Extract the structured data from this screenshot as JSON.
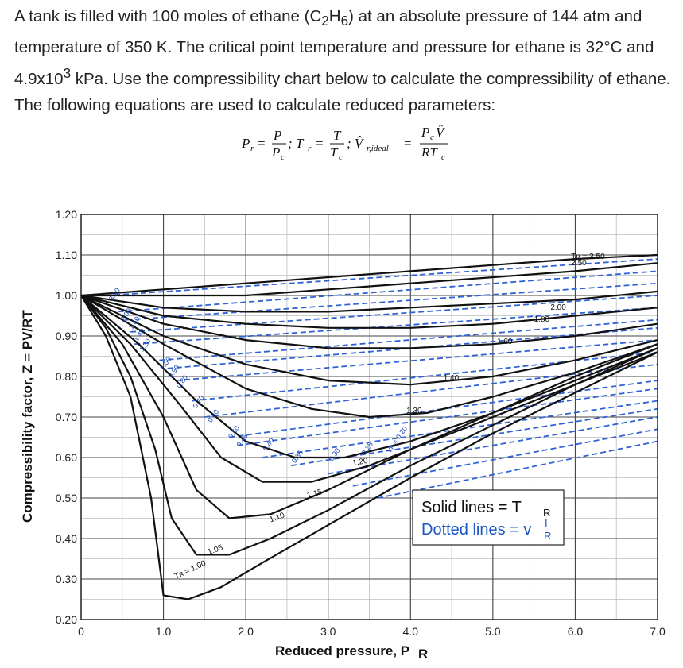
{
  "problem": {
    "line1_a": "A tank is filled with 100 moles of ethane (C",
    "sub_c": "2",
    "line1_b": "H",
    "sub_h": "6",
    "line1_c": ") at an absolute pressure of 144 atm and temperature of 350 K. The critical point temperature and pressure for ethane is 32°C and 4.9x10",
    "sup_3": "3",
    "line1_d": " kPa. Use the compressibility chart below to calculate the compressibility of ethane. The following equations are used to calculate reduced parameters:"
  },
  "equation": {
    "pr": "P",
    "pr_sub": "r",
    "eq": "=",
    "p_num": "P",
    "p_den": "P",
    "p_den_sub": "c",
    "semi1": "; T",
    "tr_sub": "r",
    "eq2": "=",
    "t_num": "T",
    "t_den": "T",
    "t_den_sub": "c",
    "semi2": "; V̂",
    "vr_sub": "r,ideal",
    "eq3": "=",
    "v_num": "P",
    "v_num_sub": "c",
    "v_num_v": "V̂",
    "v_den": "RT",
    "v_den_sub": "c"
  },
  "legend": {
    "solid": "Solid lines = T",
    "solid_sub": "R",
    "dotted": "Dotted lines = v",
    "dotted_sup": "I",
    "dotted_sub": "R"
  },
  "chart_data": {
    "type": "line",
    "xlabel": "Reduced pressure, P",
    "xlabel_sub": "R",
    "ylabel": "Compressibility factor, Z = PV/RT",
    "xlim": [
      0,
      7
    ],
    "ylim": [
      0.2,
      1.2
    ],
    "x_ticks": [
      "0",
      "1.0",
      "2.0",
      "3.0",
      "4.0",
      "5.0",
      "6.0",
      "7.0"
    ],
    "y_ticks": [
      "1.20",
      "1.10",
      "1.00",
      "0.90",
      "0.80",
      "0.70",
      "0.60",
      "0.50",
      "0.40",
      "0.30",
      "0.20"
    ],
    "grid": true,
    "tr_curves": [
      {
        "label": "Tʀ = 1.00",
        "x": [
          0,
          0.3,
          0.6,
          0.85,
          1.0,
          1.3,
          1.7,
          2.2,
          2.8,
          3.4,
          4.0,
          5.0,
          6.0,
          7.0
        ],
        "z": [
          1.0,
          0.9,
          0.75,
          0.5,
          0.26,
          0.25,
          0.28,
          0.34,
          0.41,
          0.48,
          0.55,
          0.66,
          0.76,
          0.86
        ]
      },
      {
        "label": "1.05",
        "x": [
          0,
          0.3,
          0.6,
          0.9,
          1.1,
          1.4,
          1.8,
          2.3,
          3.0,
          4.0,
          5.0,
          6.0,
          7.0
        ],
        "z": [
          1.0,
          0.92,
          0.8,
          0.62,
          0.45,
          0.36,
          0.36,
          0.4,
          0.47,
          0.58,
          0.68,
          0.78,
          0.87
        ]
      },
      {
        "label": "1.10",
        "x": [
          0,
          0.5,
          1.0,
          1.4,
          1.8,
          2.3,
          3.0,
          4.0,
          5.0,
          6.0,
          7.0
        ],
        "z": [
          1.0,
          0.88,
          0.7,
          0.52,
          0.45,
          0.46,
          0.52,
          0.62,
          0.71,
          0.8,
          0.88
        ]
      },
      {
        "label": "1.15",
        "x": [
          0,
          0.6,
          1.2,
          1.7,
          2.2,
          2.8,
          3.5,
          4.5,
          5.5,
          7.0
        ],
        "z": [
          1.0,
          0.88,
          0.73,
          0.6,
          0.54,
          0.54,
          0.58,
          0.66,
          0.74,
          0.86
        ]
      },
      {
        "label": "1.20",
        "x": [
          0,
          0.7,
          1.4,
          2.0,
          2.6,
          3.2,
          4.0,
          5.0,
          6.0,
          7.0
        ],
        "z": [
          1.0,
          0.88,
          0.74,
          0.64,
          0.6,
          0.6,
          0.64,
          0.71,
          0.79,
          0.87
        ]
      },
      {
        "label": "1.30",
        "x": [
          0,
          1.0,
          2.0,
          2.8,
          3.5,
          4.2,
          5.0,
          6.0,
          7.0
        ],
        "z": [
          1.0,
          0.88,
          0.77,
          0.72,
          0.7,
          0.71,
          0.75,
          0.81,
          0.88
        ]
      },
      {
        "label": "1.40",
        "x": [
          0,
          1.0,
          2.0,
          3.0,
          4.0,
          5.0,
          6.0,
          7.0
        ],
        "z": [
          1.0,
          0.9,
          0.83,
          0.79,
          0.78,
          0.8,
          0.84,
          0.89
        ]
      },
      {
        "label": "1.60",
        "x": [
          0,
          1.0,
          2.0,
          3.0,
          4.0,
          5.0,
          6.0,
          7.0
        ],
        "z": [
          1.0,
          0.93,
          0.89,
          0.87,
          0.87,
          0.88,
          0.9,
          0.93
        ]
      },
      {
        "label": "1.80",
        "x": [
          0,
          1.0,
          2.0,
          3.0,
          4.0,
          5.0,
          6.0,
          7.0
        ],
        "z": [
          1.0,
          0.95,
          0.93,
          0.92,
          0.92,
          0.93,
          0.95,
          0.97
        ]
      },
      {
        "label": "2.00",
        "x": [
          0,
          1.0,
          2.0,
          3.0,
          4.0,
          5.0,
          6.0,
          7.0
        ],
        "z": [
          1.0,
          0.97,
          0.96,
          0.96,
          0.97,
          0.98,
          0.99,
          1.01
        ]
      },
      {
        "label": "2.50",
        "x": [
          0,
          2.0,
          4.0,
          6.0,
          7.0
        ],
        "z": [
          1.0,
          1.0,
          1.03,
          1.06,
          1.08
        ]
      },
      {
        "label": "Tʀ = 3.50",
        "x": [
          0,
          2.0,
          4.0,
          6.0,
          7.0
        ],
        "z": [
          1.0,
          1.03,
          1.06,
          1.09,
          1.1
        ]
      }
    ],
    "vr_lines": [
      {
        "label": "3.00",
        "x": [
          0.3,
          7.0
        ],
        "z": [
          1.0,
          1.09
        ]
      },
      {
        "label": "2.00",
        "x": [
          0.45,
          7.0
        ],
        "z": [
          0.96,
          1.06
        ]
      },
      {
        "label": "1.60",
        "x": [
          0.55,
          7.0
        ],
        "z": [
          0.94,
          1.03
        ]
      },
      {
        "label": "1.40",
        "x": [
          0.6,
          7.0
        ],
        "z": [
          0.91,
          1.0
        ]
      },
      {
        "label": "1.20",
        "x": [
          0.65,
          7.0
        ],
        "z": [
          0.88,
          0.97
        ]
      },
      {
        "label": "1.00",
        "x": [
          0.95,
          7.0
        ],
        "z": [
          0.84,
          0.94
        ]
      },
      {
        "label": "0.90",
        "x": [
          1.05,
          7.0
        ],
        "z": [
          0.82,
          0.92
        ]
      },
      {
        "label": "0.80",
        "x": [
          1.15,
          7.0
        ],
        "z": [
          0.79,
          0.89
        ]
      },
      {
        "label": "0.70",
        "x": [
          1.35,
          7.0
        ],
        "z": [
          0.74,
          0.86
        ]
      },
      {
        "label": "0.60",
        "x": [
          1.5,
          7.0
        ],
        "z": [
          0.7,
          0.83
        ]
      },
      {
        "label": "0.50",
        "x": [
          1.8,
          7.0
        ],
        "z": [
          0.65,
          0.79
        ]
      },
      {
        "label": "0.45",
        "x": [
          1.9,
          7.0
        ],
        "z": [
          0.63,
          0.77
        ]
      },
      {
        "label": "0.40",
        "x": [
          2.2,
          7.0
        ],
        "z": [
          0.6,
          0.74
        ]
      },
      {
        "label": "0.35",
        "x": [
          2.55,
          7.0
        ],
        "z": [
          0.58,
          0.72
        ]
      },
      {
        "label": "0.30",
        "x": [
          3.0,
          7.0
        ],
        "z": [
          0.56,
          0.7
        ]
      },
      {
        "label": "0.25",
        "x": [
          3.3,
          7.0
        ],
        "z": [
          0.53,
          0.67
        ]
      },
      {
        "label": "Vʀ = 0.20",
        "x": [
          3.6,
          7.0
        ],
        "z": [
          0.5,
          0.64
        ]
      }
    ]
  }
}
